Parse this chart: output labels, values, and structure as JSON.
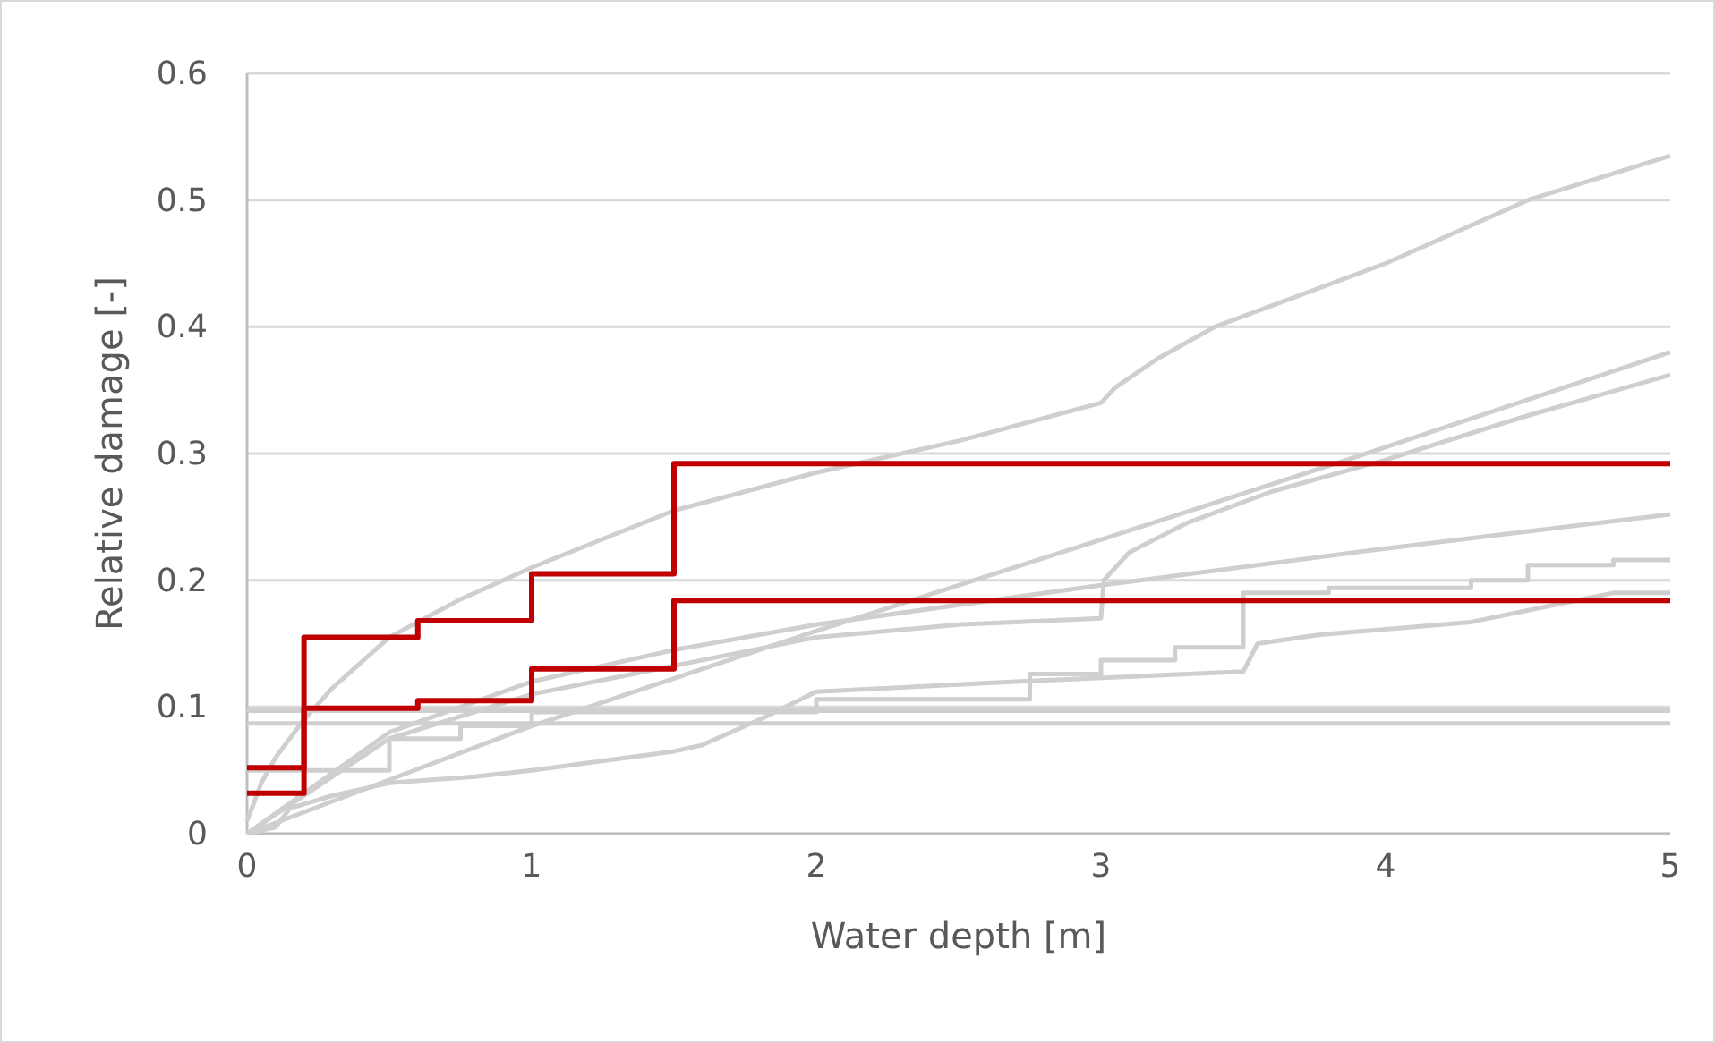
{
  "chart_data": {
    "type": "line",
    "xlabel": "Water depth [m]",
    "ylabel": "Relative damage [-]",
    "xlim": [
      0,
      5
    ],
    "xticks": [
      0,
      1,
      2,
      3,
      4,
      5
    ],
    "ylim": [
      0,
      0.6
    ],
    "yticks": [
      0,
      0.1,
      0.2,
      0.3,
      0.4,
      0.5,
      0.6
    ],
    "grid": "y",
    "marker": "none",
    "line_style": "solid",
    "series": [
      {
        "color": "#d0cece",
        "x": [
          0,
          0.05,
          0.1,
          0.2,
          0.3,
          0.5,
          0.75,
          1,
          1.5,
          2,
          2.5,
          3,
          3.05,
          3.2,
          3.4,
          4,
          4.5,
          5
        ],
        "values": [
          0.01,
          0.04,
          0.06,
          0.09,
          0.115,
          0.155,
          0.185,
          0.21,
          0.255,
          0.285,
          0.31,
          0.34,
          0.352,
          0.375,
          0.4,
          0.45,
          0.5,
          0.535
        ]
      },
      {
        "color": "#d0cece",
        "x": [
          0,
          1,
          2,
          3,
          4,
          5
        ],
        "values": [
          0,
          0.085,
          0.16,
          0.232,
          0.305,
          0.38
        ]
      },
      {
        "color": "#d0cece",
        "x": [
          0,
          0.5,
          1,
          2,
          2.5,
          3,
          3.01,
          3.1,
          3.3,
          3.6,
          4,
          4.5,
          5
        ],
        "values": [
          0,
          0.075,
          0.11,
          0.155,
          0.165,
          0.17,
          0.2,
          0.222,
          0.245,
          0.27,
          0.295,
          0.33,
          0.362
        ]
      },
      {
        "color": "#d0cece",
        "x": [
          0,
          0.5,
          1,
          1.5,
          2,
          3,
          4,
          5
        ],
        "values": [
          0,
          0.08,
          0.12,
          0.145,
          0.165,
          0.196,
          0.225,
          0.252
        ]
      },
      {
        "color": "#d0cece",
        "type": "step",
        "x": [
          0,
          0.5,
          0.75,
          1,
          2,
          2.75,
          3,
          3.26,
          3.5,
          3.8,
          4.3,
          4.5,
          4.8,
          5
        ],
        "values": [
          0.05,
          0.075,
          0.085,
          0.096,
          0.106,
          0.126,
          0.137,
          0.147,
          0.19,
          0.194,
          0.2,
          0.212,
          0.216,
          0.216
        ]
      },
      {
        "color": "#d0cece",
        "x": [
          0,
          0.1,
          0.15,
          0.3,
          0.5,
          0.8,
          1,
          1.5,
          1.6,
          1.8,
          2,
          2.7,
          3.5,
          3.55,
          3.77,
          4.3,
          4.8,
          5
        ],
        "values": [
          0,
          0.005,
          0.02,
          0.03,
          0.04,
          0.045,
          0.05,
          0.065,
          0.07,
          0.09,
          0.112,
          0.12,
          0.128,
          0.15,
          0.157,
          0.167,
          0.19,
          0.19
        ]
      },
      {
        "color": "#d0cece",
        "x": [
          0,
          5
        ],
        "values": [
          0.097,
          0.097
        ]
      },
      {
        "color": "#d0cece",
        "x": [
          0,
          5
        ],
        "values": [
          0.087,
          0.087
        ]
      },
      {
        "color": "#c00000",
        "type": "step",
        "x": [
          0,
          0.2,
          0.6,
          1,
          1.5,
          5
        ],
        "values": [
          0.052,
          0.155,
          0.168,
          0.205,
          0.292,
          0.292
        ]
      },
      {
        "color": "#c00000",
        "type": "step",
        "x": [
          0,
          0.2,
          0.6,
          1,
          1.5,
          5
        ],
        "values": [
          0.032,
          0.099,
          0.105,
          0.13,
          0.184,
          0.184
        ]
      }
    ]
  }
}
